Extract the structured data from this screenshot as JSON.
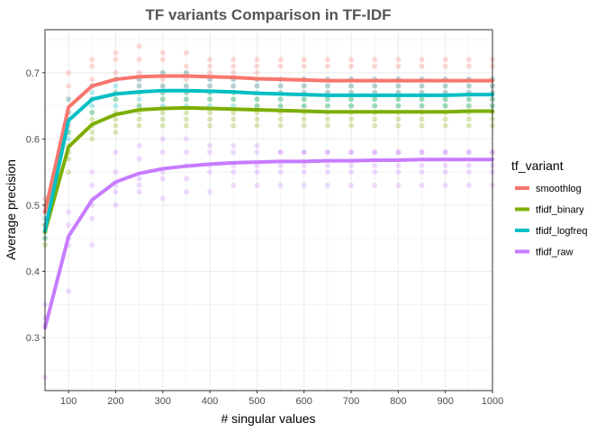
{
  "chart_data": {
    "type": "line",
    "title": "TF variants Comparison in TF-IDF",
    "xlabel": "# singular values",
    "ylabel": "Average precision",
    "xlim": [
      50,
      1000
    ],
    "ylim": [
      0.22,
      0.765
    ],
    "xticks": [
      100,
      200,
      300,
      400,
      500,
      600,
      700,
      800,
      900,
      1000
    ],
    "yticks": [
      0.3,
      0.4,
      0.5,
      0.6,
      0.7
    ],
    "grid": true,
    "legend": {
      "title": "tf_variant",
      "position": "right"
    },
    "x": [
      50,
      100,
      150,
      200,
      250,
      300,
      350,
      400,
      450,
      500,
      550,
      600,
      650,
      700,
      750,
      800,
      850,
      900,
      950,
      1000
    ],
    "series": [
      {
        "name": "smoothlog",
        "color": "#F8766D",
        "values": [
          0.49,
          0.648,
          0.68,
          0.69,
          0.694,
          0.695,
          0.695,
          0.694,
          0.693,
          0.691,
          0.69,
          0.689,
          0.688,
          0.688,
          0.688,
          0.688,
          0.688,
          0.688,
          0.688,
          0.688
        ],
        "points": [
          [
            0.49,
            0.47,
            0.5,
            0.51
          ],
          [
            0.62,
            0.66,
            0.68,
            0.7,
            0.64
          ],
          [
            0.66,
            0.69,
            0.71,
            0.72,
            0.68
          ],
          [
            0.67,
            0.7,
            0.72,
            0.73,
            0.69
          ],
          [
            0.68,
            0.7,
            0.72,
            0.74,
            0.69
          ],
          [
            0.68,
            0.7,
            0.72,
            0.73,
            0.69
          ],
          [
            0.68,
            0.7,
            0.71,
            0.73,
            0.69
          ],
          [
            0.68,
            0.7,
            0.71,
            0.72,
            0.69
          ],
          [
            0.68,
            0.7,
            0.71,
            0.72,
            0.69
          ],
          [
            0.68,
            0.7,
            0.71,
            0.72,
            0.69
          ],
          [
            0.67,
            0.69,
            0.71,
            0.72,
            0.68
          ],
          [
            0.67,
            0.69,
            0.71,
            0.72,
            0.68
          ],
          [
            0.67,
            0.69,
            0.71,
            0.72,
            0.68
          ],
          [
            0.67,
            0.69,
            0.71,
            0.72,
            0.68
          ],
          [
            0.67,
            0.69,
            0.71,
            0.72,
            0.68
          ],
          [
            0.67,
            0.69,
            0.71,
            0.72,
            0.68
          ],
          [
            0.67,
            0.69,
            0.71,
            0.72,
            0.68
          ],
          [
            0.67,
            0.69,
            0.71,
            0.72,
            0.68
          ],
          [
            0.67,
            0.69,
            0.71,
            0.72,
            0.68
          ],
          [
            0.67,
            0.69,
            0.71,
            0.72,
            0.68
          ]
        ]
      },
      {
        "name": "tfidf_binary",
        "color": "#7CAE00",
        "values": [
          0.46,
          0.588,
          0.622,
          0.637,
          0.644,
          0.646,
          0.647,
          0.646,
          0.645,
          0.644,
          0.643,
          0.642,
          0.641,
          0.641,
          0.641,
          0.641,
          0.641,
          0.641,
          0.642,
          0.642
        ],
        "points": [
          [
            0.46,
            0.44,
            0.45,
            0.47
          ],
          [
            0.57,
            0.59,
            0.55,
            0.58,
            0.61
          ],
          [
            0.6,
            0.62,
            0.64,
            0.61,
            0.63
          ],
          [
            0.61,
            0.63,
            0.66,
            0.62,
            0.64
          ],
          [
            0.62,
            0.64,
            0.67,
            0.63,
            0.65
          ],
          [
            0.62,
            0.64,
            0.67,
            0.63,
            0.66
          ],
          [
            0.62,
            0.64,
            0.67,
            0.63,
            0.66
          ],
          [
            0.62,
            0.64,
            0.67,
            0.63,
            0.66
          ],
          [
            0.62,
            0.64,
            0.67,
            0.63,
            0.66
          ],
          [
            0.62,
            0.64,
            0.66,
            0.63,
            0.65
          ],
          [
            0.62,
            0.64,
            0.66,
            0.63,
            0.65
          ],
          [
            0.62,
            0.64,
            0.66,
            0.63,
            0.65
          ],
          [
            0.62,
            0.64,
            0.66,
            0.63,
            0.65
          ],
          [
            0.62,
            0.64,
            0.66,
            0.63,
            0.65
          ],
          [
            0.62,
            0.64,
            0.66,
            0.63,
            0.65
          ],
          [
            0.62,
            0.64,
            0.66,
            0.63,
            0.65
          ],
          [
            0.62,
            0.64,
            0.66,
            0.63,
            0.65
          ],
          [
            0.62,
            0.64,
            0.66,
            0.63,
            0.65
          ],
          [
            0.62,
            0.64,
            0.66,
            0.63,
            0.65
          ],
          [
            0.62,
            0.64,
            0.66,
            0.63,
            0.65
          ]
        ]
      },
      {
        "name": "tfidf_logfreq",
        "color": "#00BFC4",
        "values": [
          0.462,
          0.628,
          0.66,
          0.668,
          0.671,
          0.673,
          0.673,
          0.672,
          0.671,
          0.669,
          0.668,
          0.667,
          0.666,
          0.666,
          0.666,
          0.666,
          0.666,
          0.666,
          0.667,
          0.667
        ],
        "points": [
          [
            0.46,
            0.45,
            0.47,
            0.48
          ],
          [
            0.61,
            0.63,
            0.66,
            0.64,
            0.6
          ],
          [
            0.64,
            0.66,
            0.68,
            0.65,
            0.67
          ],
          [
            0.65,
            0.67,
            0.69,
            0.66,
            0.68
          ],
          [
            0.65,
            0.67,
            0.69,
            0.66,
            0.68
          ],
          [
            0.65,
            0.67,
            0.7,
            0.66,
            0.68
          ],
          [
            0.65,
            0.67,
            0.7,
            0.66,
            0.68
          ],
          [
            0.65,
            0.67,
            0.69,
            0.66,
            0.68
          ],
          [
            0.65,
            0.67,
            0.69,
            0.66,
            0.68
          ],
          [
            0.65,
            0.67,
            0.69,
            0.66,
            0.68
          ],
          [
            0.65,
            0.67,
            0.69,
            0.66,
            0.68
          ],
          [
            0.65,
            0.67,
            0.69,
            0.66,
            0.68
          ],
          [
            0.65,
            0.67,
            0.69,
            0.66,
            0.68
          ],
          [
            0.65,
            0.67,
            0.69,
            0.66,
            0.68
          ],
          [
            0.65,
            0.67,
            0.69,
            0.66,
            0.68
          ],
          [
            0.65,
            0.67,
            0.69,
            0.66,
            0.68
          ],
          [
            0.65,
            0.67,
            0.69,
            0.66,
            0.68
          ],
          [
            0.65,
            0.67,
            0.69,
            0.66,
            0.68
          ],
          [
            0.65,
            0.67,
            0.69,
            0.66,
            0.68
          ],
          [
            0.65,
            0.67,
            0.69,
            0.66,
            0.68
          ]
        ]
      },
      {
        "name": "tfidf_raw",
        "color": "#C77CFF",
        "values": [
          0.315,
          0.453,
          0.508,
          0.535,
          0.548,
          0.555,
          0.559,
          0.562,
          0.564,
          0.565,
          0.566,
          0.566,
          0.567,
          0.567,
          0.568,
          0.568,
          0.569,
          0.569,
          0.569,
          0.569
        ],
        "points": [
          [
            0.24,
            0.32,
            0.35,
            0.33
          ],
          [
            0.37,
            0.44,
            0.47,
            0.45,
            0.49
          ],
          [
            0.44,
            0.5,
            0.53,
            0.48,
            0.55
          ],
          [
            0.5,
            0.53,
            0.55,
            0.52,
            0.58
          ],
          [
            0.52,
            0.54,
            0.57,
            0.53,
            0.59
          ],
          [
            0.51,
            0.55,
            0.58,
            0.54,
            0.6
          ],
          [
            0.52,
            0.56,
            0.58,
            0.54,
            0.6
          ],
          [
            0.52,
            0.56,
            0.59,
            0.55,
            0.58
          ],
          [
            0.53,
            0.56,
            0.59,
            0.55,
            0.58
          ],
          [
            0.53,
            0.56,
            0.59,
            0.55,
            0.58
          ],
          [
            0.53,
            0.56,
            0.58,
            0.55,
            0.58
          ],
          [
            0.53,
            0.56,
            0.58,
            0.55,
            0.58
          ],
          [
            0.53,
            0.56,
            0.58,
            0.55,
            0.58
          ],
          [
            0.53,
            0.56,
            0.58,
            0.55,
            0.58
          ],
          [
            0.53,
            0.56,
            0.58,
            0.55,
            0.58
          ],
          [
            0.53,
            0.56,
            0.58,
            0.55,
            0.58
          ],
          [
            0.53,
            0.56,
            0.58,
            0.55,
            0.58
          ],
          [
            0.53,
            0.56,
            0.58,
            0.55,
            0.58
          ],
          [
            0.53,
            0.56,
            0.58,
            0.55,
            0.58
          ],
          [
            0.53,
            0.56,
            0.58,
            0.55,
            0.58
          ]
        ]
      }
    ]
  }
}
